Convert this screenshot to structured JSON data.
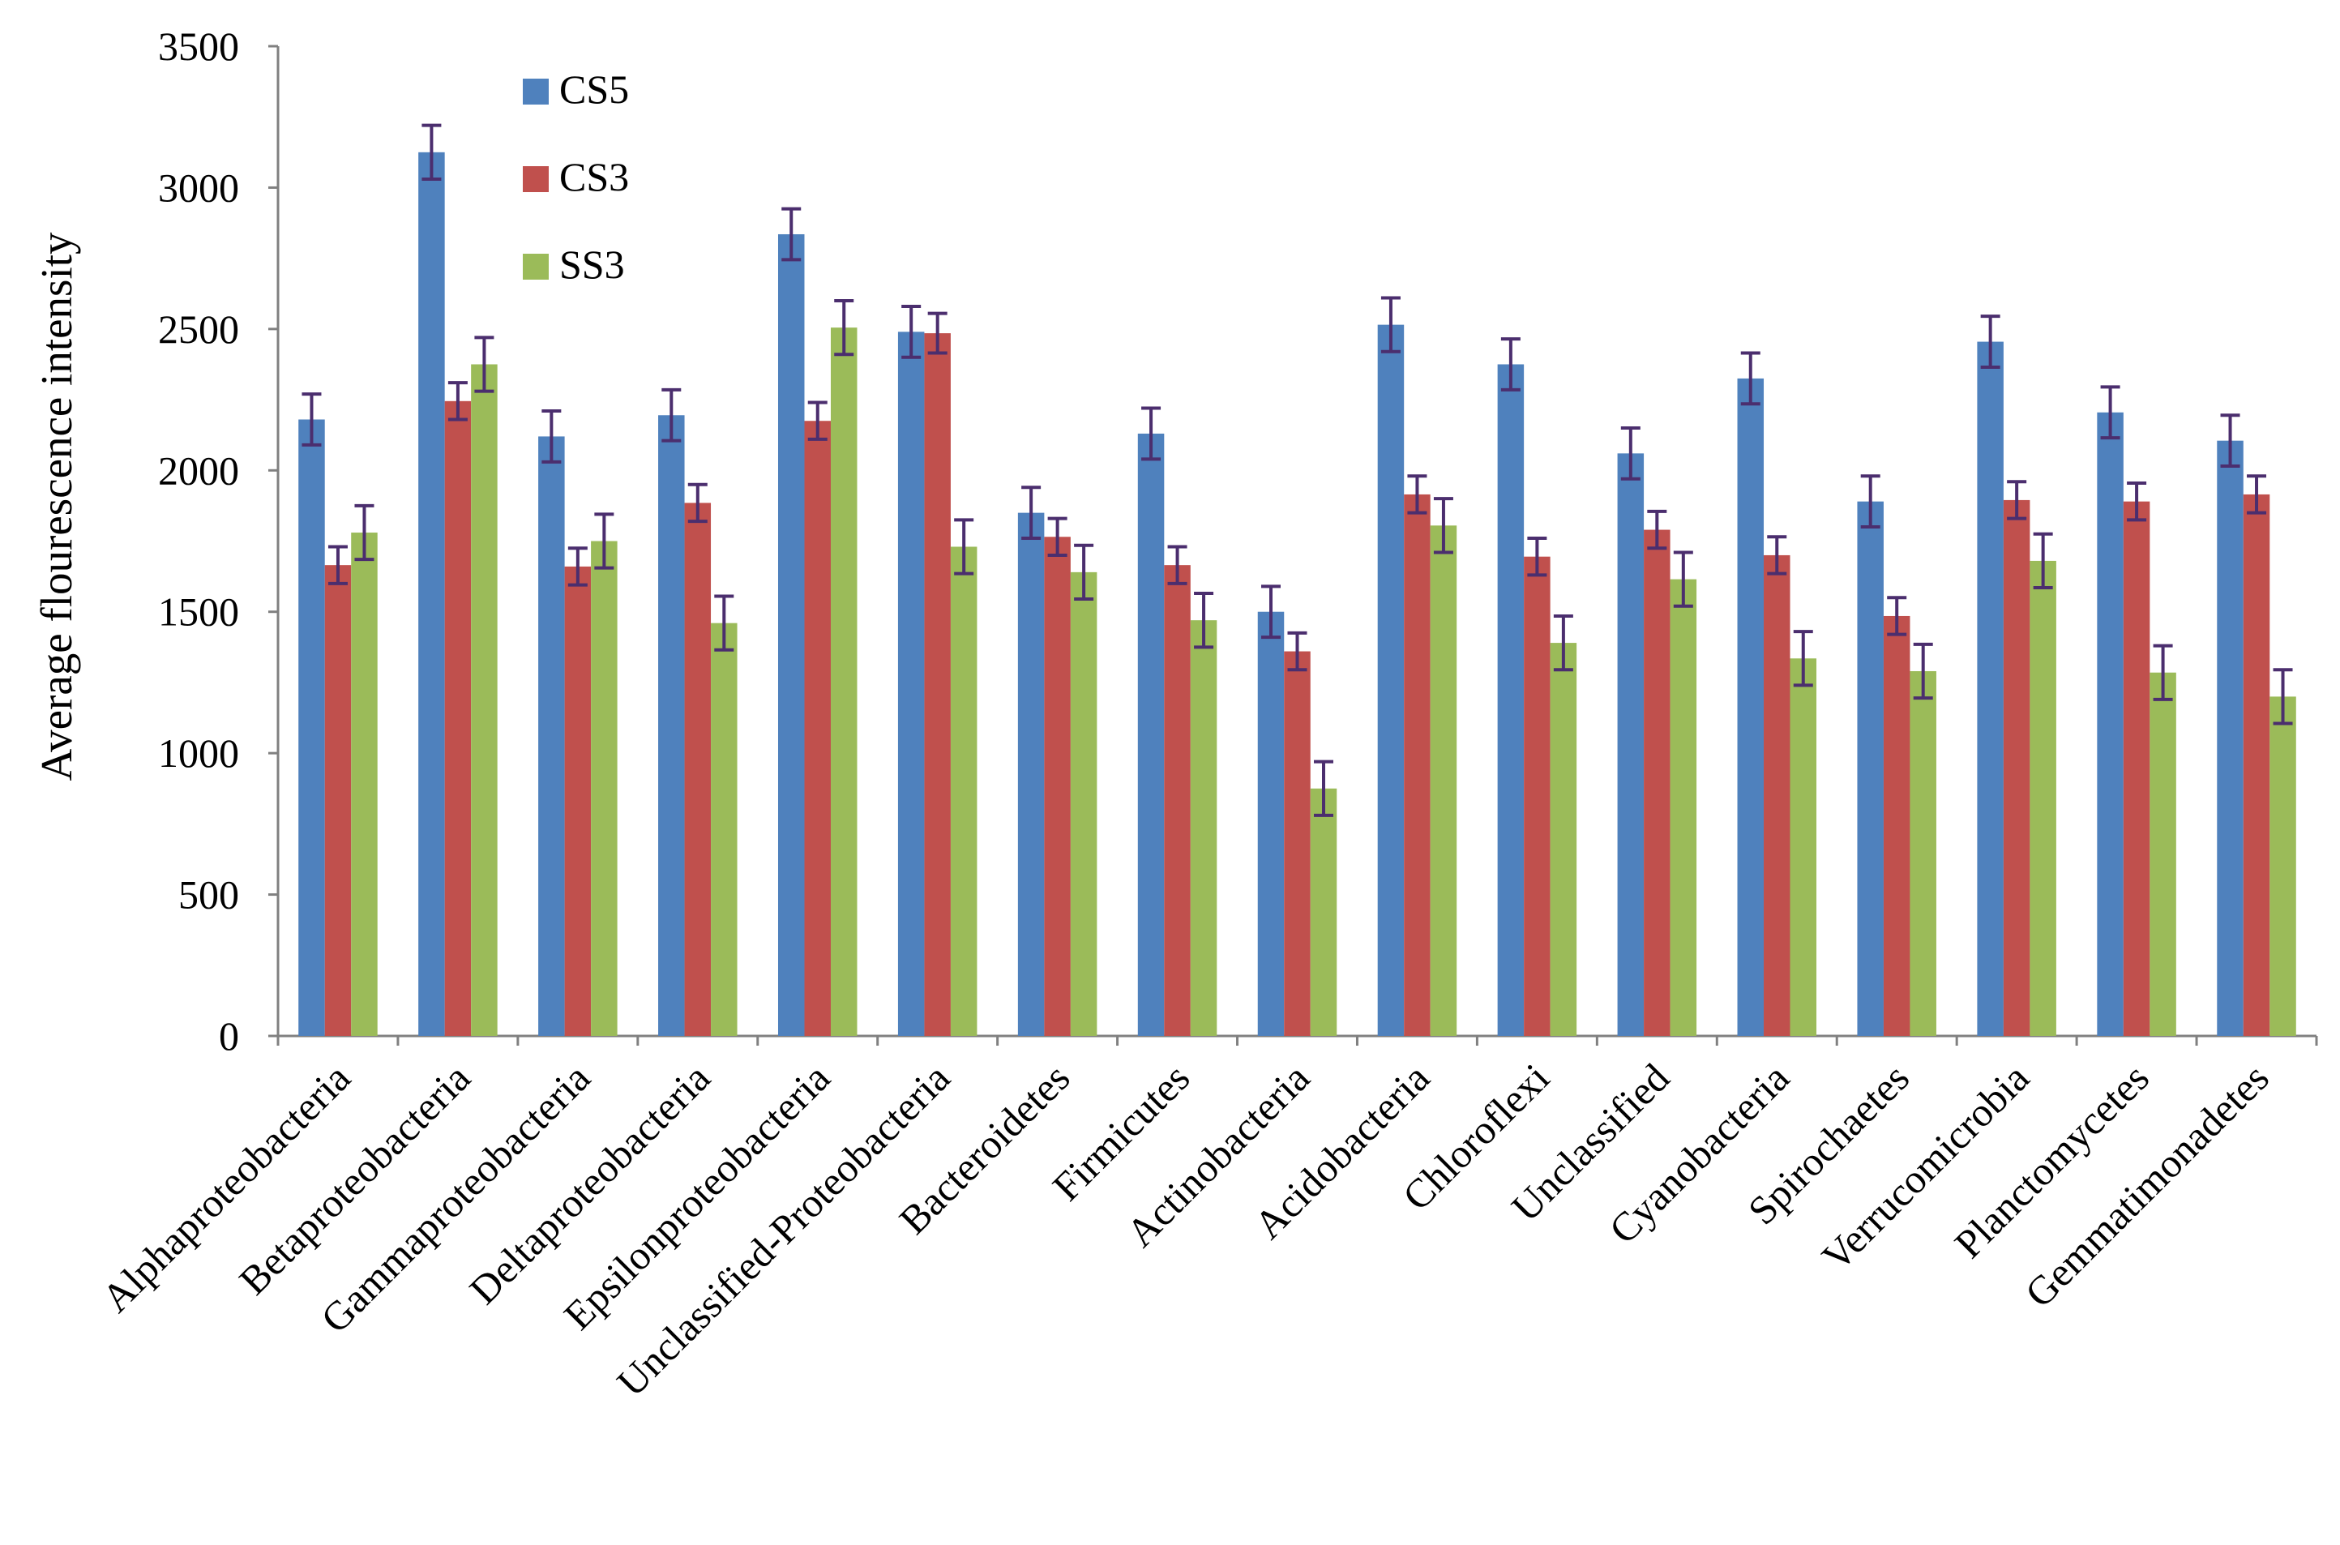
{
  "chart_data": {
    "type": "bar",
    "title": "",
    "xlabel": "",
    "ylabel": "Average flourescence intensity",
    "ylim": [
      0,
      3500
    ],
    "yticks": [
      0,
      500,
      1000,
      1500,
      2000,
      2500,
      3000,
      3500
    ],
    "grid": false,
    "legend_position": "top-left",
    "categories": [
      "Alphaproteobacteria",
      "Betaproteobacteria",
      "Gammaproteobacteria",
      "Deltaproteobacteria",
      "Epsilonproteobacteria",
      "Unclassified-Proteobacteria",
      "Bacteroidetes",
      "Firmicutes",
      "Actinobacteria",
      "Acidobacteria",
      "Chloroflexi",
      "Unclassified",
      "Cyanobacteria",
      "Spirochaetes",
      "Verrucomicrobia",
      "Planctomycetes",
      "Gemmatimonadetes"
    ],
    "series": [
      {
        "name": "CS5",
        "color": "#4f81bd",
        "values": [
          2180,
          3125,
          2120,
          2195,
          2835,
          2490,
          1850,
          2130,
          1500,
          2515,
          2375,
          2060,
          2325,
          1890,
          2455,
          2205,
          2105
        ],
        "errors": [
          90,
          95,
          90,
          90,
          90,
          90,
          90,
          90,
          90,
          95,
          90,
          90,
          90,
          90,
          90,
          90,
          90
        ]
      },
      {
        "name": "CS3",
        "color": "#c0504d",
        "values": [
          1665,
          2245,
          1660,
          1885,
          2175,
          2485,
          1765,
          1665,
          1360,
          1915,
          1695,
          1790,
          1700,
          1485,
          1895,
          1890,
          1915
        ],
        "errors": [
          65,
          65,
          65,
          65,
          65,
          70,
          65,
          65,
          65,
          65,
          65,
          65,
          65,
          65,
          65,
          65,
          65
        ]
      },
      {
        "name": "SS3",
        "color": "#9bbb59",
        "values": [
          1780,
          2375,
          1750,
          1460,
          2505,
          1730,
          1640,
          1470,
          875,
          1805,
          1390,
          1615,
          1335,
          1290,
          1680,
          1285,
          1200
        ],
        "errors": [
          95,
          95,
          95,
          95,
          95,
          95,
          95,
          95,
          95,
          95,
          95,
          95,
          95,
          95,
          95,
          95,
          95
        ]
      }
    ],
    "error_bar_color": "#4b2e6e"
  }
}
